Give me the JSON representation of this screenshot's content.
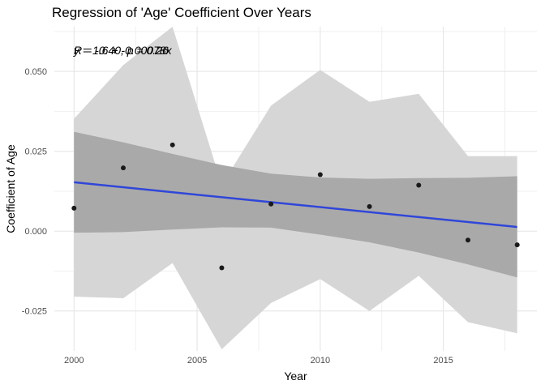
{
  "chart_data": {
    "type": "scatter",
    "title": "Regression of 'Age' Coefficient Over Years",
    "xlabel": "Year",
    "ylabel": "Coefficient of Age",
    "xlim": [
      1999.2,
      2018.8
    ],
    "ylim": [
      -0.0375,
      0.064
    ],
    "x_ticks": [
      2000,
      2005,
      2010,
      2015
    ],
    "x_tick_labels": [
      "2000",
      "2005",
      "2010",
      "2015"
    ],
    "y_ticks": [
      -0.025,
      0.0,
      0.025,
      0.05
    ],
    "y_tick_labels": [
      "-0.025",
      "0.000",
      "0.025",
      "0.050"
    ],
    "grid": true,
    "points": {
      "x": [
        2000,
        2002,
        2004,
        2006,
        2008,
        2010,
        2012,
        2014,
        2016,
        2018
      ],
      "y": [
        0.0072,
        0.0198,
        0.027,
        -0.0115,
        0.0085,
        0.0177,
        0.0077,
        0.0144,
        -0.0028,
        -0.0043
      ]
    },
    "regression_line": {
      "x": [
        2000,
        2018
      ],
      "y": [
        0.0153,
        0.0013
      ]
    },
    "confidence_band": {
      "x": [
        2000,
        2002,
        2004,
        2006,
        2008,
        2010,
        2012,
        2014,
        2016,
        2018
      ],
      "upper": [
        0.0311,
        0.0278,
        0.0242,
        0.0207,
        0.018,
        0.0168,
        0.0164,
        0.0166,
        0.0167,
        0.0172
      ],
      "lower": [
        -0.0005,
        -0.0003,
        0.0005,
        0.0012,
        0.0011,
        -0.0011,
        -0.0035,
        -0.0067,
        -0.0104,
        -0.0145
      ]
    },
    "prediction_band": {
      "x": [
        2000,
        2002,
        2004,
        2006,
        2008,
        2010,
        2012,
        2014,
        2016,
        2018
      ],
      "upper": [
        0.0352,
        0.052,
        0.064,
        0.0145,
        0.0393,
        0.0505,
        0.0405,
        0.043,
        0.0235,
        0.0235
      ],
      "lower": [
        -0.0205,
        -0.021,
        -0.01,
        -0.037,
        -0.0225,
        -0.015,
        -0.025,
        -0.014,
        -0.0285,
        -0.032
      ]
    },
    "annotations": [
      "R = -0.40, p = 0.26",
      "y = 1.6 + -0.00078x"
    ],
    "colors": {
      "line": "#3046d9",
      "point": "#1a1a1a",
      "confidence_band": "#a9a9a9",
      "prediction_band": "#d6d6d6",
      "grid_major": "#e3e3e3",
      "grid_minor": "#f0f0f0"
    }
  }
}
